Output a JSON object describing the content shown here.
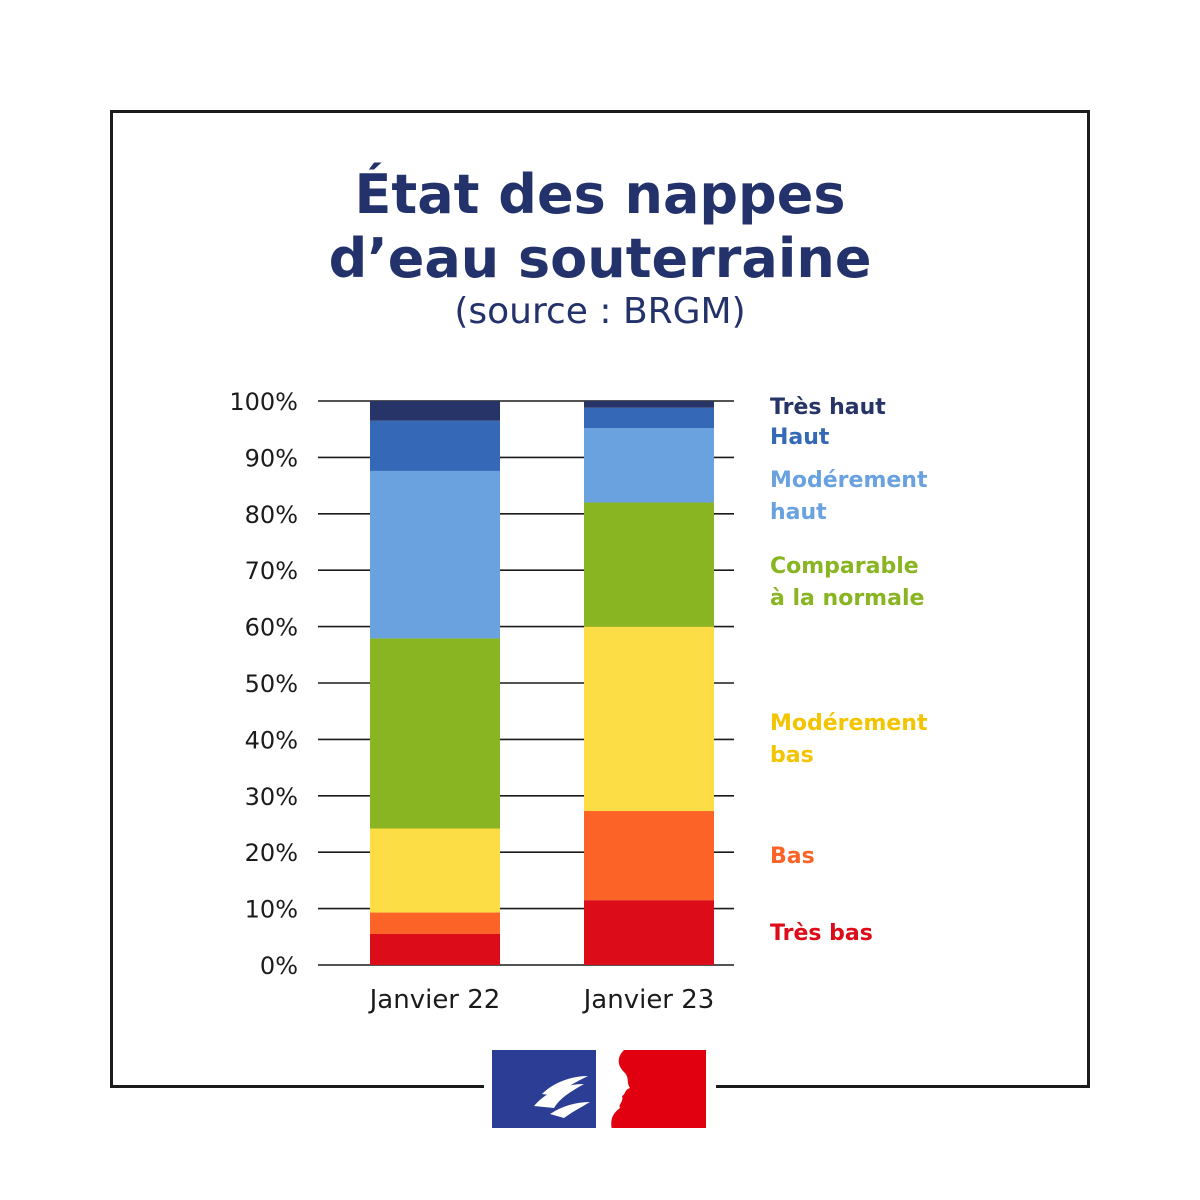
{
  "header": {
    "title_line1": "État des nappes",
    "title_line2": "d’eau souterraine",
    "subtitle": "(source : BRGM)"
  },
  "colors": {
    "tres_haut": "#263468",
    "haut": "#3569b8",
    "moderement_haut": "#6aa2e0",
    "comparable": "#89b522",
    "moderement_bas": "#fddd45",
    "bas": "#fc6427",
    "tres_bas": "#dc0c18",
    "text": "#23326b"
  },
  "chart_data": {
    "type": "bar",
    "stacked": true,
    "categories": [
      "Janvier 22",
      "Janvier 23"
    ],
    "ylim": [
      0,
      100
    ],
    "yticks": [
      "0%",
      "10%",
      "20%",
      "30%",
      "40%",
      "50%",
      "60%",
      "70%",
      "80%",
      "90%",
      "100%"
    ],
    "series": [
      {
        "name": "Très bas",
        "color": "#dc0c18",
        "values": [
          5.5,
          11.5
        ]
      },
      {
        "name": "Bas",
        "color": "#fc6427",
        "values": [
          3.8,
          15.8
        ]
      },
      {
        "name": "Modérement bas",
        "color": "#fddd45",
        "values": [
          14.9,
          32.7
        ]
      },
      {
        "name": "Comparable à la normale",
        "color": "#89b522",
        "values": [
          33.7,
          22.0
        ]
      },
      {
        "name": "Modérement haut",
        "color": "#6aa2e0",
        "values": [
          29.7,
          13.2
        ]
      },
      {
        "name": "Haut",
        "color": "#3569b8",
        "values": [
          8.9,
          3.6
        ]
      },
      {
        "name": "Très haut",
        "color": "#263468",
        "values": [
          3.5,
          1.2
        ]
      }
    ],
    "legend": [
      {
        "lines": [
          "Très haut"
        ],
        "color": "#263468"
      },
      {
        "lines": [
          "Haut"
        ],
        "color": "#3569b8"
      },
      {
        "lines": [
          "Modérement",
          "haut"
        ],
        "color": "#6aa2e0"
      },
      {
        "lines": [
          "Comparable",
          "à la normale"
        ],
        "color": "#89b522"
      },
      {
        "lines": [
          "Modérement",
          " bas"
        ],
        "color": "#f2c500"
      },
      {
        "lines": [
          "Bas"
        ],
        "color": "#fc6427"
      },
      {
        "lines": [
          "Très bas"
        ],
        "color": "#dc0c18"
      }
    ],
    "legend_position": "right"
  }
}
